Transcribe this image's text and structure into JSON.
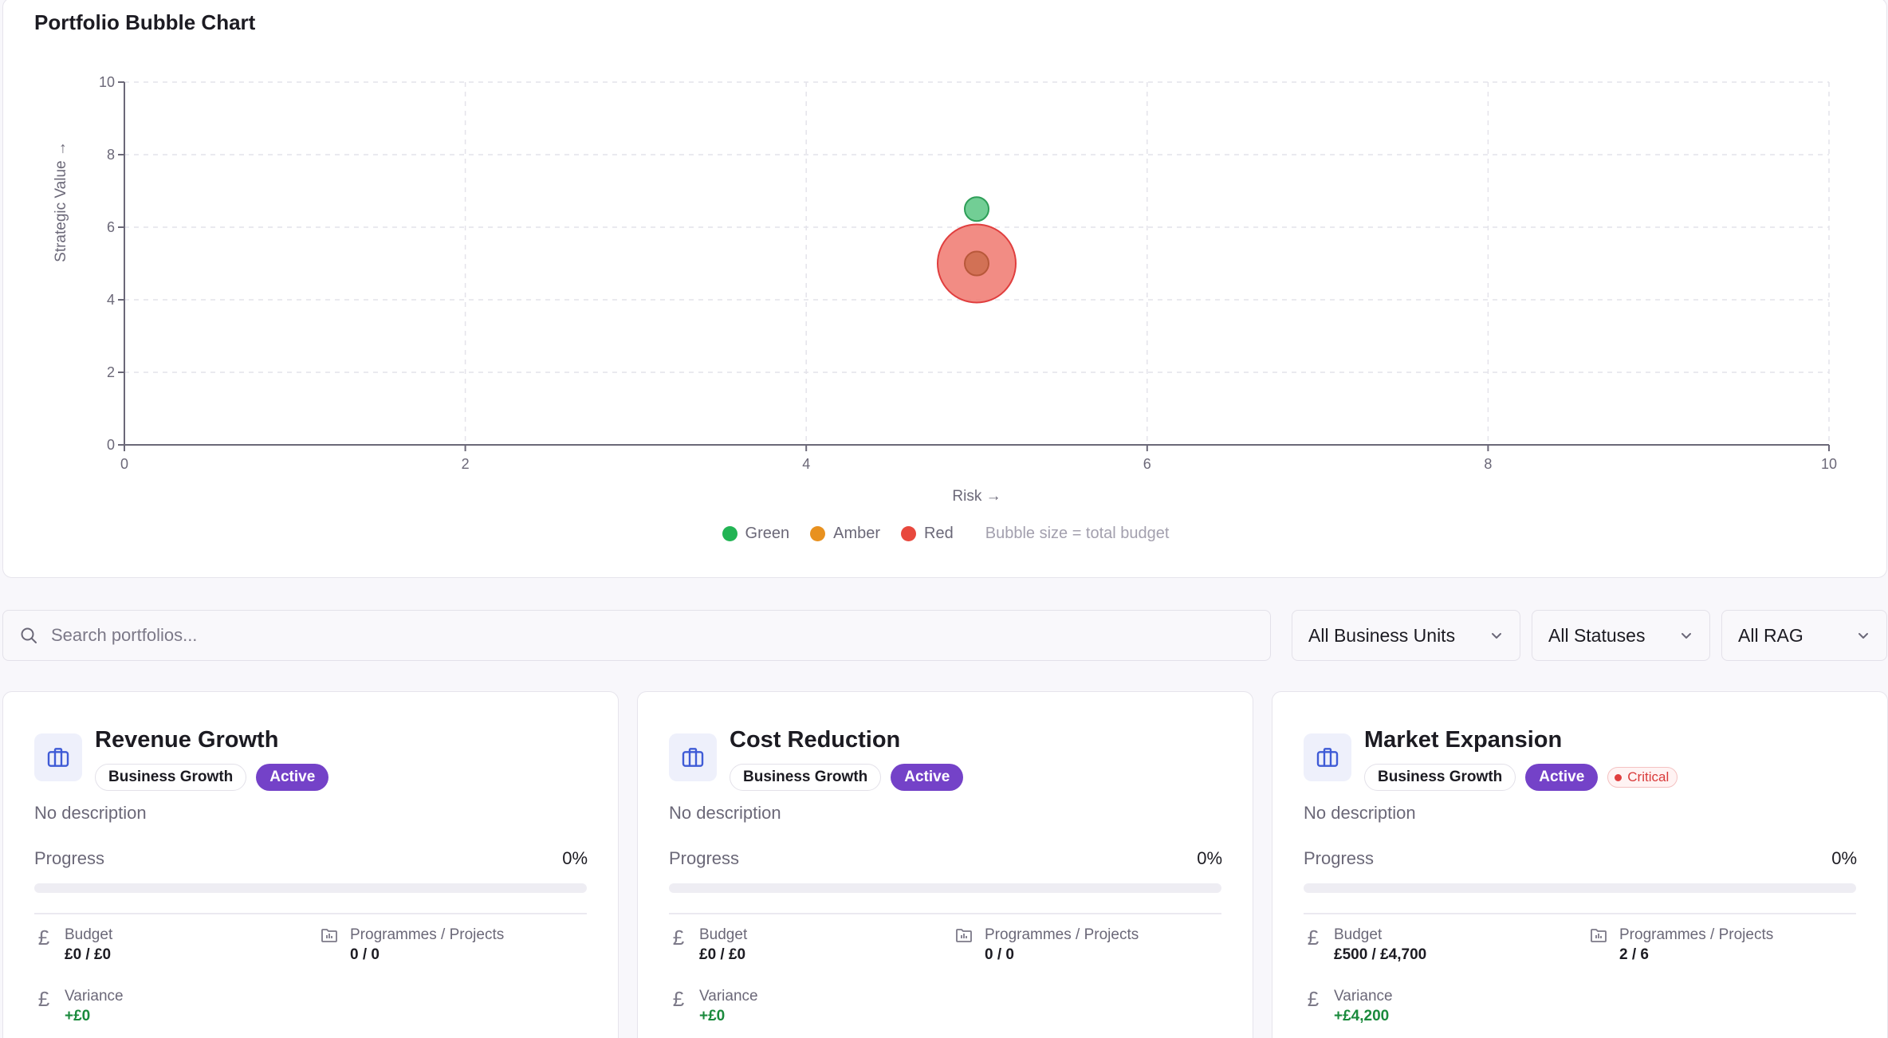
{
  "chart_card": {
    "title": "Portfolio Bubble Chart",
    "legend": [
      {
        "label": "Green",
        "color": "#22b454"
      },
      {
        "label": "Amber",
        "color": "#e8911f"
      },
      {
        "label": "Red",
        "color": "#e8483d"
      }
    ],
    "legend_note": "Bubble size = total budget"
  },
  "chart_data": {
    "type": "scatter",
    "title": "Portfolio Bubble Chart",
    "xlabel": "Risk →",
    "ylabel": "Strategic Value →",
    "xlim": [
      0,
      10
    ],
    "ylim": [
      0,
      10
    ],
    "x_ticks": [
      0,
      2,
      4,
      6,
      8,
      10
    ],
    "y_ticks": [
      0,
      2,
      4,
      6,
      8,
      10
    ],
    "grid": true,
    "legend_position": "bottom",
    "size_encoding": "total budget",
    "points": [
      {
        "x": 5,
        "y": 6.5,
        "rag": "Green",
        "budget": 0,
        "color": "#4fc27a",
        "stroke": "#2e9e58"
      },
      {
        "x": 5,
        "y": 5,
        "rag": "Red",
        "budget": 4700,
        "color": "#f0786e",
        "stroke": "#e03e3e"
      },
      {
        "x": 5,
        "y": 5,
        "rag": "Amber",
        "budget": 0,
        "color": "#c96a4a",
        "stroke": "#b8583a"
      }
    ]
  },
  "filters": {
    "search_placeholder": "Search portfolios...",
    "business_units": "All Business Units",
    "statuses": "All Statuses",
    "rag": "All RAG"
  },
  "cards": [
    {
      "title": "Revenue Growth",
      "business_unit": "Business Growth",
      "status": "Active",
      "description": "No description",
      "progress_label": "Progress",
      "progress_text": "0%",
      "progress": 0,
      "budget_label": "Budget",
      "budget_value": "£0 / £0",
      "programmes_label": "Programmes / Projects",
      "programmes_value": "0 / 0",
      "variance_label": "Variance",
      "variance_value": "+£0",
      "currency_symbol": "£"
    },
    {
      "title": "Cost Reduction",
      "business_unit": "Business Growth",
      "status": "Active",
      "description": "No description",
      "progress_label": "Progress",
      "progress_text": "0%",
      "progress": 0,
      "budget_label": "Budget",
      "budget_value": "£0 / £0",
      "programmes_label": "Programmes / Projects",
      "programmes_value": "0 / 0",
      "variance_label": "Variance",
      "variance_value": "+£0",
      "currency_symbol": "£"
    },
    {
      "title": "Market Expansion",
      "business_unit": "Business Growth",
      "status": "Active",
      "rag_badge": "Critical",
      "description": "No description",
      "progress_label": "Progress",
      "progress_text": "0%",
      "progress": 0,
      "budget_label": "Budget",
      "budget_value": "£500 / £4,700",
      "programmes_label": "Programmes / Projects",
      "programmes_value": "2 / 6",
      "variance_label": "Variance",
      "variance_value": "+£4,200",
      "currency_symbol": "£"
    }
  ]
}
